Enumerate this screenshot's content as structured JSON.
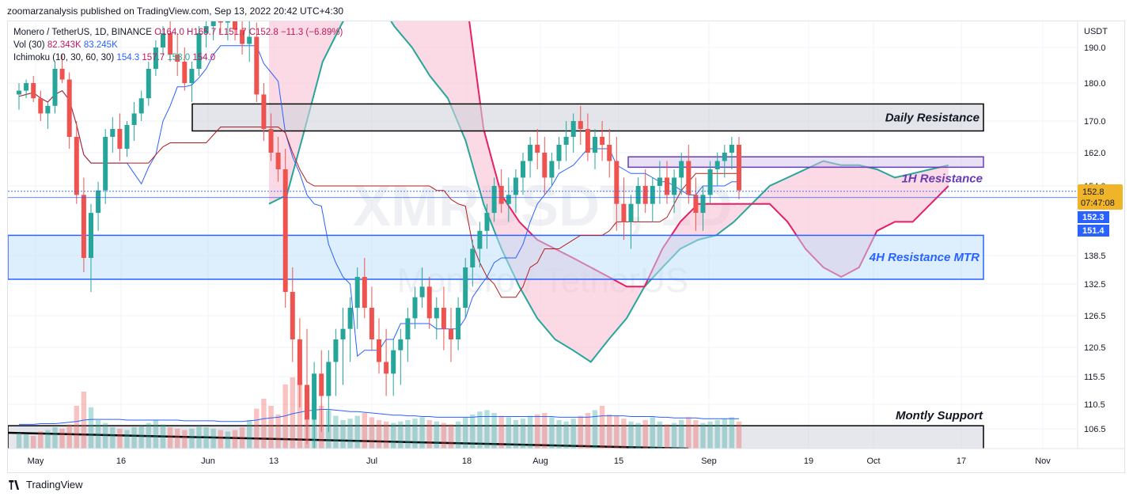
{
  "header": {
    "published_by": "zoomarzanalysis published on TradingView.com, Sep 13, 2022 20:42 UTC+4:30"
  },
  "legend": {
    "symbol": "Monero / TetherUS, 1D, BINANCE",
    "ohlc": "O164.0  H165.7  L151.7  C152.8  −11.3 (−6.89%)",
    "vol_label": "Vol (30)",
    "vol_values": [
      "82.343K",
      "83.245K"
    ],
    "ichimoku_label": "Ichimoku (10, 30, 60, 30)",
    "ichimoku_values": [
      "154.3",
      "157.7",
      "158.0",
      "154.0"
    ]
  },
  "watermark": {
    "ticker": "XMRUSDT, 1D",
    "name": "Monero / TetherUS"
  },
  "footer": {
    "brand": "TradingView"
  },
  "colors": {
    "up": "#26a69a",
    "down": "#ef5350",
    "cloud_bull": "#26a69a",
    "cloud_bear": "#e91e63",
    "tenkan": "#2962ff",
    "kijun": "#b71c1c",
    "daily_zone": "#000000",
    "h1_zone": "#673ab7",
    "h4_zone": "#2962ff"
  },
  "chart_data": {
    "type": "candlestick",
    "currency": "USDT",
    "y_ticks": [
      190.0,
      180.0,
      170.0,
      162.0,
      154.0,
      138.5,
      132.5,
      126.5,
      120.5,
      115.5,
      110.5,
      106.5
    ],
    "x_ticks": [
      "May",
      "16",
      "Jun",
      "13",
      "Jul",
      "18",
      "Aug",
      "15",
      "Sep",
      "19",
      "Oct",
      "17",
      "Nov"
    ],
    "price_badges": [
      {
        "label": "152.8",
        "sub": "07:47:08",
        "color": "#f0b429"
      },
      {
        "label": "152.3",
        "color": "#2962ff"
      },
      {
        "label": "151.4",
        "color": "#2962ff"
      }
    ],
    "zones": [
      {
        "label": "Daily Resistance",
        "from": 167.5,
        "to": 174.5
      },
      {
        "label": "1H Resistance",
        "from": 158.5,
        "to": 161.0
      },
      {
        "label": "4H Resistance MTR",
        "from": 133.5,
        "to": 143.0
      },
      {
        "label": "Montly Support",
        "from": 101.5,
        "to": 107.0
      }
    ],
    "ohlc": [
      [
        0,
        177,
        180,
        173,
        178
      ],
      [
        1,
        178,
        181,
        176,
        180
      ],
      [
        2,
        180,
        182,
        175,
        176
      ],
      [
        3,
        176,
        178,
        170,
        172
      ],
      [
        4,
        172,
        175,
        168,
        174
      ],
      [
        5,
        174,
        186,
        172,
        184
      ],
      [
        6,
        184,
        188,
        180,
        181
      ],
      [
        7,
        181,
        183,
        163,
        166
      ],
      [
        8,
        166,
        170,
        150,
        152
      ],
      [
        9,
        152,
        156,
        135,
        138
      ],
      [
        10,
        138,
        150,
        131,
        148
      ],
      [
        11,
        148,
        155,
        144,
        153
      ],
      [
        12,
        153,
        168,
        150,
        166
      ],
      [
        13,
        166,
        171,
        162,
        168
      ],
      [
        14,
        168,
        172,
        160,
        163
      ],
      [
        15,
        163,
        170,
        161,
        169
      ],
      [
        16,
        169,
        175,
        165,
        172
      ],
      [
        17,
        172,
        178,
        170,
        176
      ],
      [
        18,
        176,
        186,
        174,
        184
      ],
      [
        19,
        184,
        192,
        182,
        190
      ],
      [
        20,
        190,
        196,
        188,
        194
      ],
      [
        21,
        194,
        198,
        186,
        188
      ],
      [
        22,
        188,
        194,
        182,
        186
      ],
      [
        23,
        186,
        190,
        178,
        180
      ],
      [
        24,
        180,
        186,
        175,
        184
      ],
      [
        25,
        184,
        196,
        182,
        194
      ],
      [
        26,
        194,
        198,
        190,
        196
      ],
      [
        27,
        196,
        202,
        192,
        200
      ],
      [
        28,
        200,
        206,
        194,
        197
      ],
      [
        29,
        197,
        203,
        192,
        200
      ],
      [
        30,
        200,
        204,
        192,
        195
      ],
      [
        31,
        195,
        200,
        188,
        191
      ],
      [
        32,
        191,
        198,
        186,
        193
      ],
      [
        33,
        193,
        197,
        175,
        177
      ],
      [
        34,
        177,
        180,
        165,
        168
      ],
      [
        35,
        168,
        172,
        160,
        162
      ],
      [
        36,
        162,
        166,
        155,
        158
      ],
      [
        37,
        158,
        163,
        128,
        131
      ],
      [
        38,
        131,
        136,
        118,
        122
      ],
      [
        39,
        122,
        126,
        110,
        114
      ],
      [
        40,
        114,
        124,
        104,
        108
      ],
      [
        41,
        108,
        118,
        102,
        116
      ],
      [
        42,
        116,
        120,
        106,
        112
      ],
      [
        43,
        112,
        120,
        106,
        118
      ],
      [
        44,
        118,
        124,
        112,
        122
      ],
      [
        45,
        122,
        128,
        114,
        124
      ],
      [
        46,
        124,
        130,
        118,
        128
      ],
      [
        47,
        128,
        136,
        124,
        134
      ],
      [
        48,
        134,
        138,
        126,
        128
      ],
      [
        49,
        128,
        132,
        120,
        122
      ],
      [
        50,
        122,
        126,
        116,
        118
      ],
      [
        51,
        118,
        124,
        112,
        116
      ],
      [
        52,
        116,
        122,
        112,
        120
      ],
      [
        53,
        120,
        124,
        114,
        122
      ],
      [
        54,
        122,
        128,
        118,
        126
      ],
      [
        55,
        126,
        132,
        124,
        130
      ],
      [
        56,
        130,
        136,
        128,
        132
      ],
      [
        57,
        132,
        134,
        124,
        126
      ],
      [
        58,
        126,
        130,
        122,
        128
      ],
      [
        59,
        128,
        132,
        120,
        124
      ],
      [
        60,
        124,
        128,
        118,
        122
      ],
      [
        61,
        122,
        130,
        120,
        128
      ],
      [
        62,
        128,
        138,
        126,
        136
      ],
      [
        63,
        136,
        142,
        132,
        140
      ],
      [
        64,
        140,
        146,
        136,
        144
      ],
      [
        65,
        144,
        150,
        140,
        148
      ],
      [
        66,
        148,
        156,
        146,
        154
      ],
      [
        67,
        154,
        158,
        148,
        150
      ],
      [
        68,
        150,
        156,
        146,
        152
      ],
      [
        69,
        152,
        158,
        148,
        156
      ],
      [
        70,
        156,
        162,
        152,
        160
      ],
      [
        71,
        160,
        166,
        156,
        164
      ],
      [
        72,
        164,
        168,
        158,
        162
      ],
      [
        73,
        162,
        166,
        152,
        156
      ],
      [
        74,
        156,
        162,
        154,
        160
      ],
      [
        75,
        160,
        166,
        158,
        164
      ],
      [
        76,
        164,
        170,
        160,
        166
      ],
      [
        77,
        166,
        172,
        162,
        170
      ],
      [
        78,
        170,
        174,
        164,
        168
      ],
      [
        79,
        168,
        172,
        160,
        162
      ],
      [
        80,
        162,
        168,
        158,
        166
      ],
      [
        81,
        166,
        170,
        160,
        164
      ],
      [
        82,
        164,
        168,
        156,
        160
      ],
      [
        83,
        160,
        166,
        144,
        150
      ],
      [
        84,
        150,
        156,
        142,
        146
      ],
      [
        85,
        146,
        152,
        140,
        150
      ],
      [
        86,
        150,
        156,
        146,
        154
      ],
      [
        87,
        154,
        158,
        148,
        150
      ],
      [
        88,
        150,
        156,
        146,
        154
      ],
      [
        89,
        154,
        160,
        150,
        156
      ],
      [
        90,
        156,
        160,
        150,
        152
      ],
      [
        91,
        152,
        158,
        148,
        156
      ],
      [
        92,
        156,
        162,
        152,
        160
      ],
      [
        93,
        160,
        164,
        150,
        152
      ],
      [
        94,
        152,
        156,
        144,
        148
      ],
      [
        95,
        148,
        154,
        144,
        152
      ],
      [
        96,
        152,
        160,
        150,
        158
      ],
      [
        97,
        158,
        162,
        154,
        160
      ],
      [
        98,
        160,
        164,
        156,
        162
      ],
      [
        99,
        162,
        166,
        158,
        164
      ],
      [
        100,
        164,
        166,
        151,
        153
      ]
    ],
    "volume": [
      22,
      20,
      18,
      24,
      26,
      30,
      28,
      34,
      60,
      80,
      58,
      40,
      36,
      30,
      28,
      26,
      30,
      32,
      36,
      40,
      34,
      30,
      28,
      26,
      28,
      32,
      30,
      28,
      26,
      24,
      26,
      30,
      40,
      56,
      70,
      60,
      48,
      90,
      100,
      96,
      86,
      70,
      60,
      54,
      46,
      40,
      42,
      46,
      50,
      44,
      40,
      38,
      36,
      38,
      40,
      42,
      44,
      40,
      38,
      36,
      34,
      38,
      44,
      48,
      52,
      54,
      50,
      46,
      44,
      40,
      42,
      46,
      48,
      50,
      44,
      40,
      38,
      42,
      46,
      50,
      54,
      60,
      48,
      46,
      42,
      38,
      36,
      40,
      44,
      38,
      34,
      36,
      40,
      44,
      40,
      36,
      38,
      40,
      42,
      44,
      38
    ],
    "volume_ma": [
      34,
      34,
      34,
      35,
      35,
      35,
      36,
      37,
      38,
      40,
      41,
      41,
      41,
      41,
      41,
      40,
      40,
      40,
      40,
      40,
      40,
      40,
      40,
      39,
      39,
      39,
      39,
      39,
      38,
      38,
      38,
      38,
      39,
      40,
      42,
      43,
      44,
      46,
      49,
      51,
      53,
      54,
      55,
      55,
      54,
      53,
      52,
      52,
      51,
      50,
      49,
      48,
      47,
      47,
      46,
      46,
      45,
      45,
      44,
      44,
      44,
      44,
      44,
      44,
      45,
      45,
      45,
      45,
      45,
      45,
      45,
      45,
      45,
      45,
      45,
      44,
      44,
      44,
      44,
      44,
      45,
      46,
      46,
      46,
      46,
      45,
      45,
      45,
      45,
      44,
      44,
      43,
      43,
      43,
      43,
      42,
      42,
      42,
      42,
      42,
      42
    ]
  }
}
